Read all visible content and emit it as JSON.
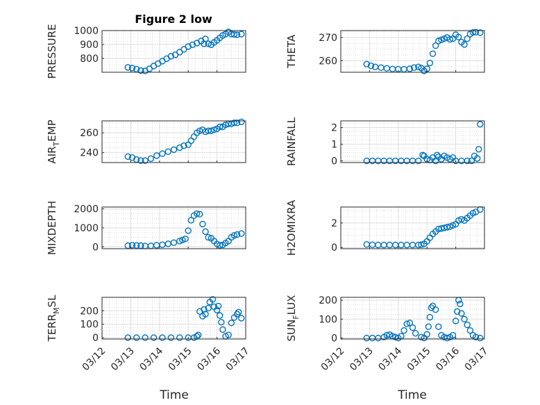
{
  "figure": {
    "title": "Figure 2 low"
  },
  "x_label": "Time",
  "x_ticks": [
    "03/12",
    "03/13",
    "03/14",
    "03/15",
    "03/16",
    "03/17"
  ],
  "marker_color": "#0072BD",
  "chart_data": [
    {
      "type": "scatter",
      "name": "PRESSURE",
      "ylabel": "PRESSURE",
      "xlim": [
        0,
        5
      ],
      "ylim": [
        700,
        1000
      ],
      "yticks": [
        800,
        900,
        1000
      ],
      "x": [
        0.9,
        1.05,
        1.2,
        1.35,
        1.5,
        1.65,
        1.8,
        1.95,
        2.1,
        2.25,
        2.4,
        2.55,
        2.7,
        2.85,
        3.0,
        3.15,
        3.3,
        3.45,
        3.55,
        3.6,
        3.7,
        3.8,
        3.9,
        4.0,
        4.1,
        4.2,
        4.3,
        4.4,
        4.5,
        4.6,
        4.7,
        4.85
      ],
      "y": [
        735,
        730,
        722,
        712,
        710,
        725,
        745,
        762,
        780,
        798,
        815,
        826,
        845,
        865,
        885,
        898,
        910,
        925,
        905,
        940,
        905,
        898,
        915,
        930,
        948,
        965,
        975,
        990,
        975,
        972,
        970,
        975
      ]
    },
    {
      "type": "scatter",
      "name": "THETA",
      "ylabel": "THETA",
      "xlim": [
        0,
        5
      ],
      "ylim": [
        255,
        273
      ],
      "yticks": [
        260,
        270
      ],
      "x": [
        0.9,
        1.05,
        1.2,
        1.4,
        1.6,
        1.8,
        2.0,
        2.2,
        2.4,
        2.55,
        2.7,
        2.8,
        2.9,
        3.0,
        3.1,
        3.2,
        3.3,
        3.4,
        3.5,
        3.6,
        3.7,
        3.8,
        3.9,
        4.0,
        4.1,
        4.2,
        4.3,
        4.4,
        4.5,
        4.6,
        4.7,
        4.85
      ],
      "y": [
        258.5,
        257.8,
        257.3,
        257.0,
        256.7,
        256.4,
        256.3,
        256.3,
        256.5,
        257.0,
        257.3,
        256.8,
        255.6,
        256.5,
        259.0,
        263.0,
        266.5,
        268.5,
        269.0,
        269.5,
        270.0,
        269.2,
        269.5,
        271.2,
        270.2,
        268.0,
        267.0,
        269.5,
        271.5,
        272.2,
        272.3,
        272.1
      ]
    },
    {
      "type": "scatter",
      "name": "AIR_TEMP",
      "ylabel_main": "AIR",
      "ylabel_sub": "T",
      "ylabel_tail": "EMP",
      "xlim": [
        0,
        5
      ],
      "ylim": [
        230,
        272
      ],
      "yticks": [
        240,
        260
      ],
      "x": [
        0.9,
        1.05,
        1.2,
        1.35,
        1.5,
        1.7,
        1.9,
        2.1,
        2.3,
        2.5,
        2.7,
        2.85,
        3.0,
        3.1,
        3.2,
        3.3,
        3.4,
        3.5,
        3.6,
        3.7,
        3.8,
        3.9,
        4.0,
        4.1,
        4.2,
        4.3,
        4.4,
        4.5,
        4.6,
        4.7,
        4.85
      ],
      "y": [
        236,
        235,
        233,
        232,
        232,
        234,
        237,
        239,
        241,
        243,
        245,
        247,
        248,
        252,
        256,
        260,
        262,
        263,
        261,
        262,
        262,
        263,
        264,
        266,
        266,
        268,
        269,
        269,
        270,
        270,
        271
      ]
    },
    {
      "type": "scatter",
      "name": "RAINFALL",
      "ylabel": "RAINFALL",
      "xlim": [
        0,
        5
      ],
      "ylim": [
        -0.1,
        2.4
      ],
      "yticks": [
        0,
        1,
        2
      ],
      "x": [
        0.9,
        1.1,
        1.3,
        1.5,
        1.7,
        1.9,
        2.1,
        2.3,
        2.5,
        2.7,
        2.85,
        2.9,
        3.0,
        3.1,
        3.2,
        3.3,
        3.35,
        3.4,
        3.5,
        3.6,
        3.7,
        3.8,
        3.9,
        4.0,
        4.2,
        4.4,
        4.55,
        4.65,
        4.75,
        4.8,
        4.85
      ],
      "y": [
        0,
        0,
        0,
        0,
        0,
        0,
        0,
        0,
        0,
        0,
        0.35,
        0.3,
        0.1,
        0.05,
        0.2,
        0,
        0.35,
        0.25,
        0.1,
        0.3,
        0.2,
        0.1,
        0.2,
        0,
        0,
        0,
        0,
        0.3,
        0.15,
        0.7,
        2.2
      ]
    },
    {
      "type": "scatter",
      "name": "MIXDEPTH",
      "ylabel": "MIXDEPTH",
      "xlim": [
        0,
        5
      ],
      "ylim": [
        -100,
        2100
      ],
      "yticks": [
        0,
        1000,
        2000
      ],
      "x": [
        0.9,
        1.05,
        1.2,
        1.35,
        1.5,
        1.7,
        1.9,
        2.1,
        2.3,
        2.5,
        2.7,
        2.8,
        2.9,
        3.0,
        3.1,
        3.2,
        3.3,
        3.4,
        3.5,
        3.6,
        3.7,
        3.8,
        3.9,
        4.0,
        4.1,
        4.2,
        4.3,
        4.4,
        4.5,
        4.6,
        4.7,
        4.85
      ],
      "y": [
        60,
        80,
        70,
        60,
        40,
        50,
        80,
        110,
        160,
        220,
        300,
        360,
        420,
        850,
        1400,
        1650,
        1750,
        1720,
        1200,
        800,
        500,
        450,
        300,
        150,
        80,
        100,
        200,
        300,
        500,
        600,
        650,
        700
      ]
    },
    {
      "type": "scatter",
      "name": "H2OMIXRA",
      "ylabel": "H2OMIXRA",
      "xlim": [
        0,
        5
      ],
      "ylim": [
        -0.1,
        3.3
      ],
      "yticks": [
        0,
        2
      ],
      "x": [
        0.9,
        1.1,
        1.3,
        1.5,
        1.7,
        1.9,
        2.1,
        2.3,
        2.5,
        2.7,
        2.8,
        2.9,
        3.0,
        3.1,
        3.2,
        3.3,
        3.4,
        3.5,
        3.6,
        3.7,
        3.8,
        3.9,
        4.0,
        4.1,
        4.2,
        4.3,
        4.4,
        4.5,
        4.6,
        4.7,
        4.85
      ],
      "y": [
        0.25,
        0.22,
        0.2,
        0.2,
        0.2,
        0.2,
        0.2,
        0.2,
        0.2,
        0.2,
        0.22,
        0.3,
        0.5,
        0.8,
        1.1,
        1.3,
        1.5,
        1.55,
        1.6,
        1.65,
        1.7,
        1.8,
        1.9,
        2.2,
        2.3,
        2.2,
        2.4,
        2.6,
        2.8,
        2.9,
        3.1
      ]
    },
    {
      "type": "scatter",
      "name": "TERR_MSL",
      "ylabel_main": "TERR",
      "ylabel_sub": "M",
      "ylabel_tail": "SL",
      "xlim": [
        0,
        5
      ],
      "ylim": [
        -10,
        300
      ],
      "yticks": [
        0,
        100,
        200
      ],
      "x": [
        0.9,
        1.2,
        1.5,
        1.8,
        2.1,
        2.4,
        2.7,
        3.0,
        3.2,
        3.3,
        3.35,
        3.4,
        3.5,
        3.55,
        3.6,
        3.7,
        3.75,
        3.85,
        3.9,
        4.0,
        4.05,
        4.1,
        4.15,
        4.2,
        4.3,
        4.4,
        4.5,
        4.6,
        4.7,
        4.75,
        4.85
      ],
      "y": [
        0,
        0,
        0,
        0,
        0,
        0,
        0,
        0,
        0,
        10,
        20,
        195,
        160,
        210,
        175,
        220,
        265,
        285,
        230,
        205,
        235,
        165,
        115,
        60,
        10,
        20,
        110,
        150,
        175,
        190,
        145
      ]
    },
    {
      "type": "scatter",
      "name": "SUN_FLUX",
      "ylabel_main": "SUN",
      "ylabel_sub": "F",
      "ylabel_tail": "LUX",
      "xlim": [
        0,
        5
      ],
      "ylim": [
        -5,
        215
      ],
      "yticks": [
        0,
        100,
        200
      ],
      "x": [
        0.9,
        1.1,
        1.3,
        1.5,
        1.6,
        1.7,
        1.8,
        1.9,
        2.0,
        2.1,
        2.2,
        2.3,
        2.4,
        2.5,
        2.6,
        2.8,
        2.9,
        3.0,
        3.05,
        3.1,
        3.15,
        3.2,
        3.3,
        3.4,
        3.5,
        3.6,
        3.7,
        3.8,
        3.9,
        4.0,
        4.05,
        4.1,
        4.15,
        4.2,
        4.3,
        4.4,
        4.5,
        4.6,
        4.7,
        4.85
      ],
      "y": [
        0,
        0,
        0,
        5,
        15,
        18,
        10,
        5,
        0,
        10,
        40,
        75,
        80,
        55,
        25,
        5,
        0,
        20,
        60,
        110,
        160,
        170,
        150,
        60,
        15,
        5,
        0,
        5,
        15,
        90,
        140,
        200,
        180,
        130,
        100,
        70,
        40,
        15,
        5,
        0
      ]
    }
  ]
}
